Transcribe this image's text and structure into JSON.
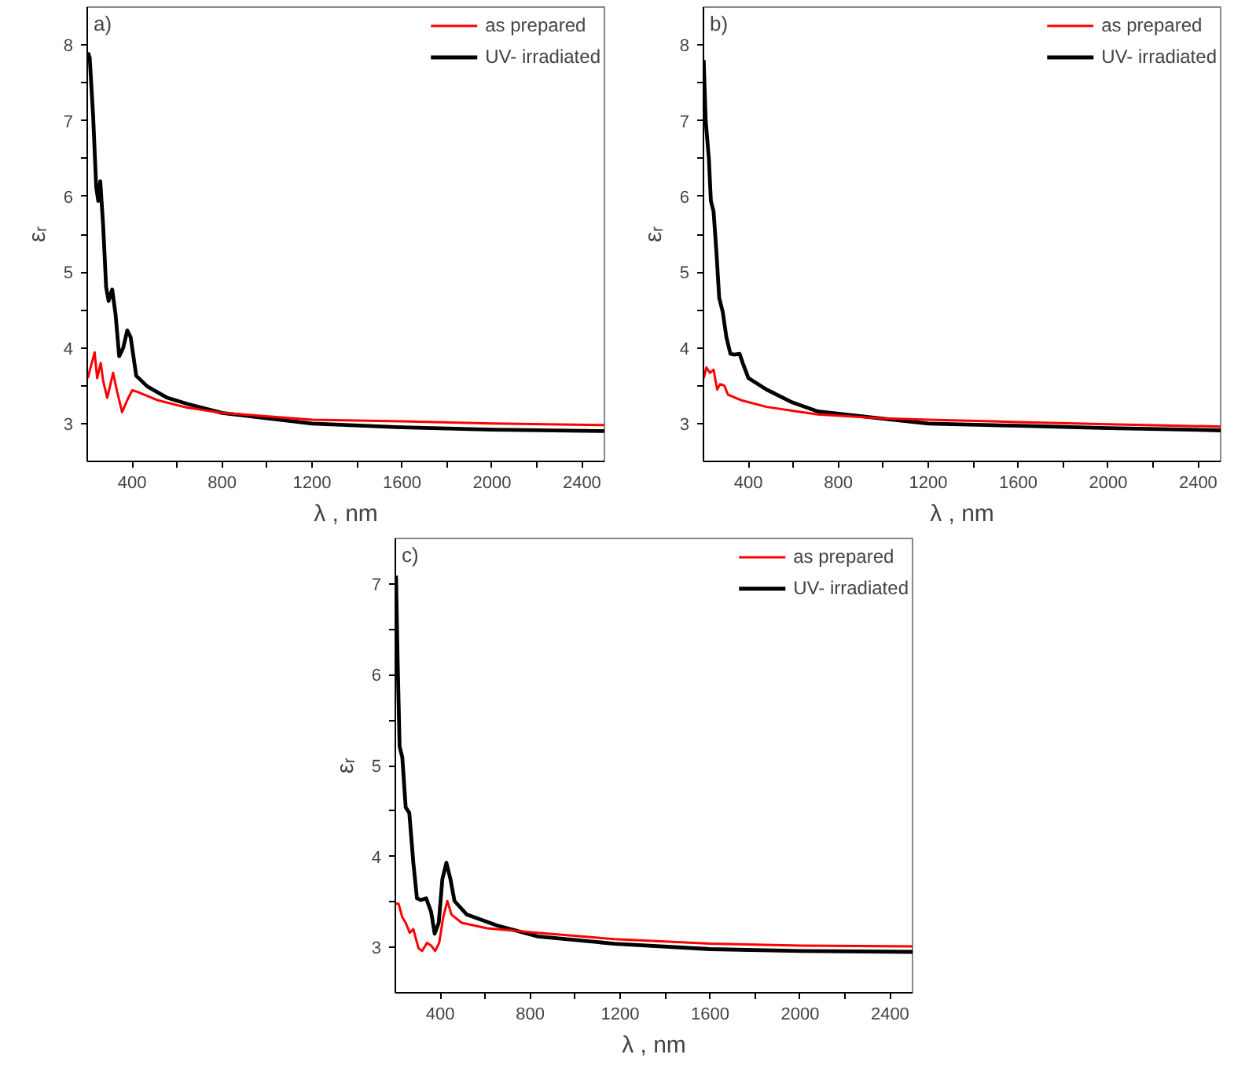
{
  "chart_data": [
    {
      "type": "line",
      "annotations": [
        "a)"
      ],
      "xlabel": "λ , nm",
      "ylabel": "εᵣ",
      "xlim": [
        200,
        2500
      ],
      "ylim": [
        2.5,
        8.5
      ],
      "xticks": [
        400,
        800,
        1200,
        1600,
        2000,
        2400,
        {
          "value": 600,
          "label": null
        },
        {
          "value": 1000,
          "label": null
        },
        {
          "value": 1400,
          "label": null
        },
        {
          "value": 1800,
          "label": null
        },
        {
          "value": 2200,
          "label": null
        }
      ],
      "yticks": [
        3,
        4,
        5,
        6,
        7,
        8,
        {
          "value": 3.5,
          "label": null
        },
        {
          "value": 4.5,
          "label": null
        },
        {
          "value": 5.5,
          "label": null
        },
        {
          "value": 6.5,
          "label": null
        },
        {
          "value": 7.5,
          "label": null
        }
      ],
      "grid": false,
      "legend": "top right",
      "line_style": "solid",
      "marker": "none",
      "series": [
        {
          "name": "as prepared",
          "color": "#ff0000",
          "x": [
            203,
            211,
            233,
            244,
            260,
            271,
            289,
            315,
            333,
            355,
            378,
            400,
            422,
            511,
            644,
            800,
            1200,
            1600,
            2000,
            2500
          ],
          "values": [
            3.6,
            3.7,
            3.94,
            3.6,
            3.8,
            3.56,
            3.34,
            3.67,
            3.42,
            3.15,
            3.31,
            3.44,
            3.42,
            3.31,
            3.21,
            3.14,
            3.05,
            3.03,
            3.0,
            2.98
          ]
        },
        {
          "name": "UV- irradiated",
          "color": "#000000",
          "x": [
            203,
            211,
            226,
            240,
            249,
            258,
            271,
            284,
            295,
            311,
            326,
            342,
            360,
            378,
            393,
            418,
            467,
            556,
            644,
            800,
            1200,
            1600,
            2000,
            2500
          ],
          "values": [
            7.9,
            7.83,
            7.07,
            6.12,
            5.94,
            6.2,
            5.6,
            4.8,
            4.62,
            4.77,
            4.44,
            3.89,
            4.0,
            4.23,
            4.14,
            3.63,
            3.49,
            3.34,
            3.26,
            3.14,
            3.0,
            2.95,
            2.92,
            2.9
          ]
        }
      ]
    },
    {
      "type": "line",
      "annotations": [
        "b)"
      ],
      "xlabel": "λ , nm",
      "ylabel": "εᵣ",
      "xlim": [
        200,
        2500
      ],
      "ylim": [
        2.5,
        8.5
      ],
      "xticks": [
        400,
        800,
        1200,
        1600,
        2000,
        2400,
        {
          "value": 600,
          "label": null
        },
        {
          "value": 1000,
          "label": null
        },
        {
          "value": 1400,
          "label": null
        },
        {
          "value": 1800,
          "label": null
        },
        {
          "value": 2200,
          "label": null
        }
      ],
      "yticks": [
        3,
        4,
        5,
        6,
        7,
        8,
        {
          "value": 3.5,
          "label": null
        },
        {
          "value": 4.5,
          "label": null
        },
        {
          "value": 5.5,
          "label": null
        },
        {
          "value": 6.5,
          "label": null
        },
        {
          "value": 7.5,
          "label": null
        }
      ],
      "grid": false,
      "legend": "top right",
      "line_style": "solid",
      "marker": "none",
      "series": [
        {
          "name": "as prepared",
          "color": "#ff0000",
          "x": [
            201,
            213,
            229,
            245,
            261,
            274,
            293,
            309,
            366,
            480,
            709,
            982,
            1200,
            1600,
            2000,
            2500
          ],
          "values": [
            3.6,
            3.74,
            3.67,
            3.71,
            3.45,
            3.52,
            3.5,
            3.38,
            3.31,
            3.22,
            3.12,
            3.07,
            3.05,
            3.02,
            2.99,
            2.96
          ]
        },
        {
          "name": "UV- irradiated",
          "color": "#000000",
          "x": [
            201,
            210,
            224,
            233,
            245,
            258,
            270,
            286,
            302,
            320,
            338,
            361,
            377,
            400,
            480,
            594,
            709,
            982,
            1200,
            1600,
            2000,
            2500
          ],
          "values": [
            7.8,
            7.0,
            6.5,
            5.94,
            5.8,
            5.25,
            4.66,
            4.47,
            4.14,
            3.92,
            3.91,
            3.92,
            3.78,
            3.6,
            3.45,
            3.28,
            3.16,
            3.07,
            3.0,
            2.97,
            2.94,
            2.91
          ]
        }
      ]
    },
    {
      "type": "line",
      "annotations": [
        "c)"
      ],
      "xlabel": "λ , nm",
      "ylabel": "εᵣ",
      "xlim": [
        200,
        2500
      ],
      "ylim": [
        2.5,
        7.5
      ],
      "xticks": [
        400,
        800,
        1200,
        1600,
        2000,
        2400,
        {
          "value": 600,
          "label": null
        },
        {
          "value": 1000,
          "label": null
        },
        {
          "value": 1400,
          "label": null
        },
        {
          "value": 1800,
          "label": null
        },
        {
          "value": 2200,
          "label": null
        }
      ],
      "yticks": [
        3,
        4,
        5,
        6,
        7,
        {
          "value": 3.5,
          "label": null
        },
        {
          "value": 4.5,
          "label": null
        },
        {
          "value": 5.5,
          "label": null
        },
        {
          "value": 6.5,
          "label": null
        }
      ],
      "grid": false,
      "legend": "top right",
      "line_style": "solid",
      "marker": "none",
      "series": [
        {
          "name": "as prepared",
          "color": "#ff0000",
          "x": [
            200,
            214,
            231,
            246,
            264,
            280,
            303,
            319,
            341,
            359,
            377,
            395,
            413,
            431,
            450,
            495,
            608,
            834,
            1173,
            1600,
            2000,
            2500
          ],
          "values": [
            3.48,
            3.48,
            3.33,
            3.27,
            3.16,
            3.2,
            2.99,
            2.96,
            3.05,
            3.02,
            2.96,
            3.05,
            3.33,
            3.51,
            3.36,
            3.27,
            3.21,
            3.16,
            3.09,
            3.04,
            3.02,
            3.01
          ]
        },
        {
          "name": "UV- irradiated",
          "color": "#000000",
          "x": [
            203,
            210,
            219,
            231,
            246,
            262,
            280,
            296,
            314,
            337,
            359,
            375,
            393,
            409,
            427,
            445,
            463,
            518,
            653,
            834,
            1173,
            1600,
            2000,
            2500
          ],
          "values": [
            7.09,
            6.18,
            5.21,
            5.09,
            4.54,
            4.48,
            3.93,
            3.54,
            3.52,
            3.54,
            3.39,
            3.15,
            3.27,
            3.75,
            3.93,
            3.75,
            3.51,
            3.36,
            3.24,
            3.12,
            3.04,
            2.98,
            2.96,
            2.95
          ]
        }
      ]
    }
  ]
}
